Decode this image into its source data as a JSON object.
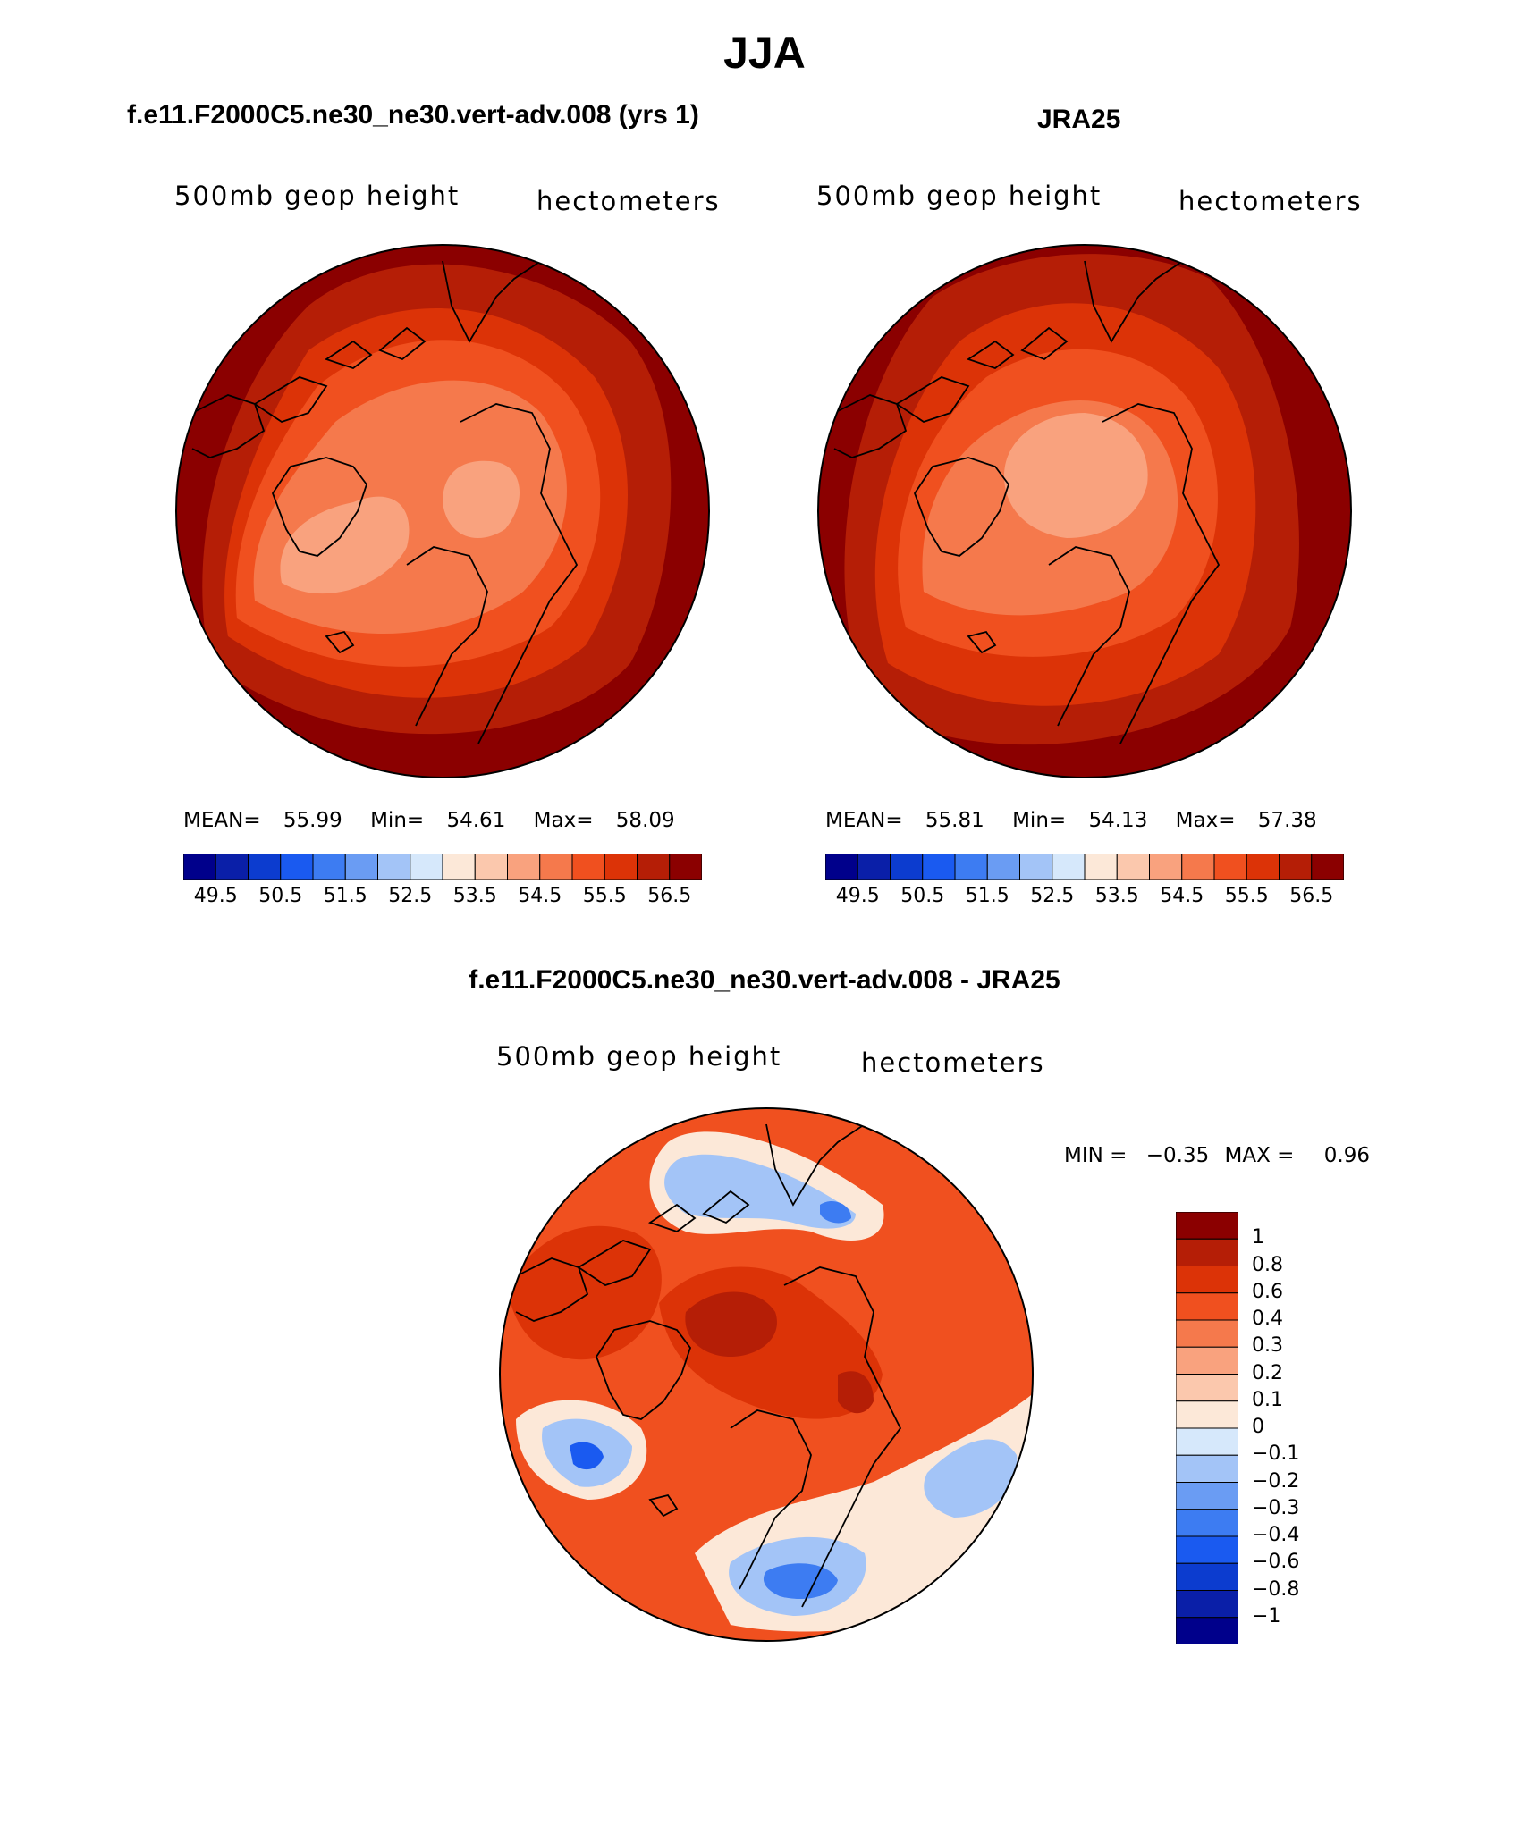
{
  "title": "JJA",
  "panels": [
    {
      "id": "model",
      "case_title": "f.e11.F2000C5.ne30_ne30.vert-adv.008 (yrs 1)",
      "variable": "500mb geop height",
      "units": "hectometers",
      "stats": {
        "mean_label": "MEAN=",
        "mean": "55.99",
        "min_label": "Min=",
        "min": "54.61",
        "max_label": "Max=",
        "max": "58.09"
      },
      "palette": [
        "#00008b",
        "#0a1fa8",
        "#0c3ccf",
        "#1a5af0",
        "#3d7cf2",
        "#6a9cf3",
        "#a3c4f7",
        "#d6e8fb",
        "#fce8d8",
        "#fbc8ad",
        "#f9a27e",
        "#f5794c",
        "#f0501f",
        "#dc3307",
        "#b51e06",
        "#8b0000"
      ],
      "tick_labels": [
        "49.5",
        "50.5",
        "51.5",
        "52.5",
        "53.5",
        "54.5",
        "55.5",
        "56.5"
      ]
    },
    {
      "id": "obs",
      "case_title": "JRA25",
      "variable": "500mb geop height",
      "units": "hectometers",
      "stats": {
        "mean_label": "MEAN=",
        "mean": "55.81",
        "min_label": "Min=",
        "min": "54.13",
        "max_label": "Max=",
        "max": "57.38"
      },
      "palette": [
        "#00008b",
        "#0a1fa8",
        "#0c3ccf",
        "#1a5af0",
        "#3d7cf2",
        "#6a9cf3",
        "#a3c4f7",
        "#d6e8fb",
        "#fce8d8",
        "#fbc8ad",
        "#f9a27e",
        "#f5794c",
        "#f0501f",
        "#dc3307",
        "#b51e06",
        "#8b0000"
      ],
      "tick_labels": [
        "49.5",
        "50.5",
        "51.5",
        "52.5",
        "53.5",
        "54.5",
        "55.5",
        "56.5"
      ]
    }
  ],
  "difference": {
    "case_title": "f.e11.F2000C5.ne30_ne30.vert-adv.008 - JRA25",
    "variable": "500mb geop height",
    "units": "hectometers",
    "stats": {
      "min_label": "MIN =",
      "min": "−0.35",
      "max_label": "MAX =",
      "max": "0.96"
    },
    "palette": [
      "#00008b",
      "#0a1fa8",
      "#0c3ccf",
      "#1a5af0",
      "#3d7cf2",
      "#6a9cf3",
      "#a3c4f7",
      "#d6e8fb",
      "#fce8d8",
      "#fbc8ad",
      "#f9a27e",
      "#f5794c",
      "#f0501f",
      "#dc3307",
      "#b51e06",
      "#8b0000"
    ],
    "levels": [
      "1",
      "0.8",
      "0.6",
      "0.4",
      "0.3",
      "0.2",
      "0.1",
      "0",
      "−0.1",
      "−0.2",
      "−0.3",
      "−0.4",
      "−0.6",
      "−0.8",
      "−1"
    ]
  },
  "map_projection": "north-polar-stereographic",
  "coastline_color": "#000000"
}
